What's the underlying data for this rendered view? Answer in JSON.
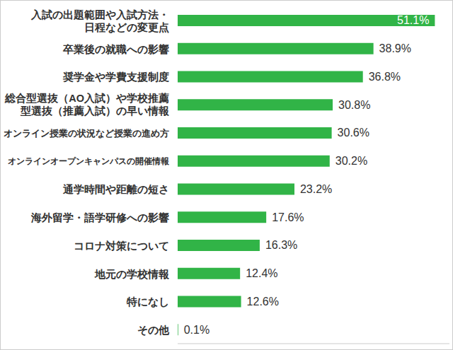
{
  "chart_data": {
    "type": "bar",
    "orientation": "horizontal",
    "categories": [
      "入試の出題範囲や入試方法・\n日程などの変更点",
      "卒業後の就職への影響",
      "奨学金や学費支援制度",
      "総合型選抜（AO入試）や学校推薦\n型選抜（推薦入試）の早い情報",
      "オンライン授業の状況など授業の進め方",
      "オンラインオープンキャンパスの開催情報",
      "通学時間や距離の短さ",
      "海外留学・語学研修への影響",
      "コロナ対策について",
      "地元の学校情報",
      "特になし",
      "その他"
    ],
    "values": [
      51.1,
      38.9,
      36.8,
      30.8,
      30.6,
      30.2,
      23.2,
      17.6,
      16.3,
      12.4,
      12.6,
      0.1
    ],
    "value_labels": [
      "51.1%",
      "38.9%",
      "36.8%",
      "30.8%",
      "30.6%",
      "30.2%",
      "23.2%",
      "17.6%",
      "16.3%",
      "12.4%",
      "12.6%",
      "0.1%"
    ],
    "color": "#31b447",
    "xlim": [
      0,
      54
    ],
    "xticks": [],
    "data_labels": true,
    "tick_labels": "y",
    "grid": false
  }
}
